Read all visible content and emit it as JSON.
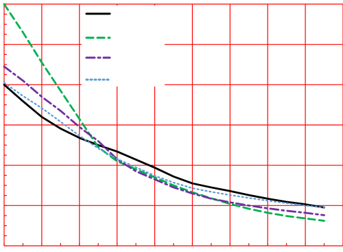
{
  "chart_data": {
    "type": "line",
    "title": "",
    "xlabel": "",
    "ylabel": "",
    "xlim": [
      0,
      9
    ],
    "ylim": [
      0,
      6
    ],
    "grid": true,
    "legend_position": "top",
    "colors": {
      "grid": "#ff0000",
      "background": "#ffffff"
    },
    "series": [
      {
        "color": "#000000",
        "dash": "solid",
        "x": [
          0,
          0.5,
          1,
          1.5,
          2,
          2.5,
          3,
          3.5,
          4,
          4.5,
          5,
          5.5,
          6,
          6.5,
          7,
          7.5,
          8,
          8.5
        ],
        "y": [
          4.0,
          3.59,
          3.2,
          2.91,
          2.68,
          2.5,
          2.34,
          2.14,
          1.94,
          1.72,
          1.55,
          1.45,
          1.36,
          1.26,
          1.17,
          1.09,
          1.03,
          0.95
        ]
      },
      {
        "color": "#00b050",
        "dash": "dashed",
        "x": [
          0,
          0.5,
          1,
          1.5,
          2,
          2.5,
          3,
          3.5,
          4,
          4.5,
          5,
          5.5,
          6,
          6.5,
          7,
          7.5,
          8,
          8.5
        ],
        "y": [
          6.0,
          5.3,
          4.55,
          3.85,
          3.15,
          2.45,
          2.1,
          1.9,
          1.7,
          1.5,
          1.33,
          1.18,
          1.04,
          0.92,
          0.82,
          0.74,
          0.68,
          0.62
        ]
      },
      {
        "color": "#7030a0",
        "dash": "dash-dot",
        "x": [
          0,
          0.5,
          1,
          1.5,
          2,
          2.5,
          3,
          3.5,
          4,
          4.5,
          5,
          5.5,
          6,
          6.5,
          7,
          7.5,
          8,
          8.5
        ],
        "y": [
          4.45,
          4.1,
          3.7,
          3.35,
          2.95,
          2.6,
          2.15,
          1.85,
          1.65,
          1.45,
          1.3,
          1.17,
          1.08,
          1.0,
          0.93,
          0.87,
          0.82,
          0.76
        ]
      },
      {
        "color": "#5b9bd5",
        "dash": "dotted",
        "x": [
          0,
          0.5,
          1,
          1.5,
          2,
          2.5,
          3,
          3.5,
          4,
          4.5,
          5,
          5.5,
          6,
          6.5,
          7,
          7.5,
          8,
          8.5
        ],
        "y": [
          4.05,
          3.72,
          3.42,
          3.08,
          2.73,
          2.42,
          2.16,
          1.95,
          1.74,
          1.57,
          1.43,
          1.34,
          1.26,
          1.19,
          1.12,
          1.06,
          1.0,
          0.95
        ]
      }
    ]
  }
}
